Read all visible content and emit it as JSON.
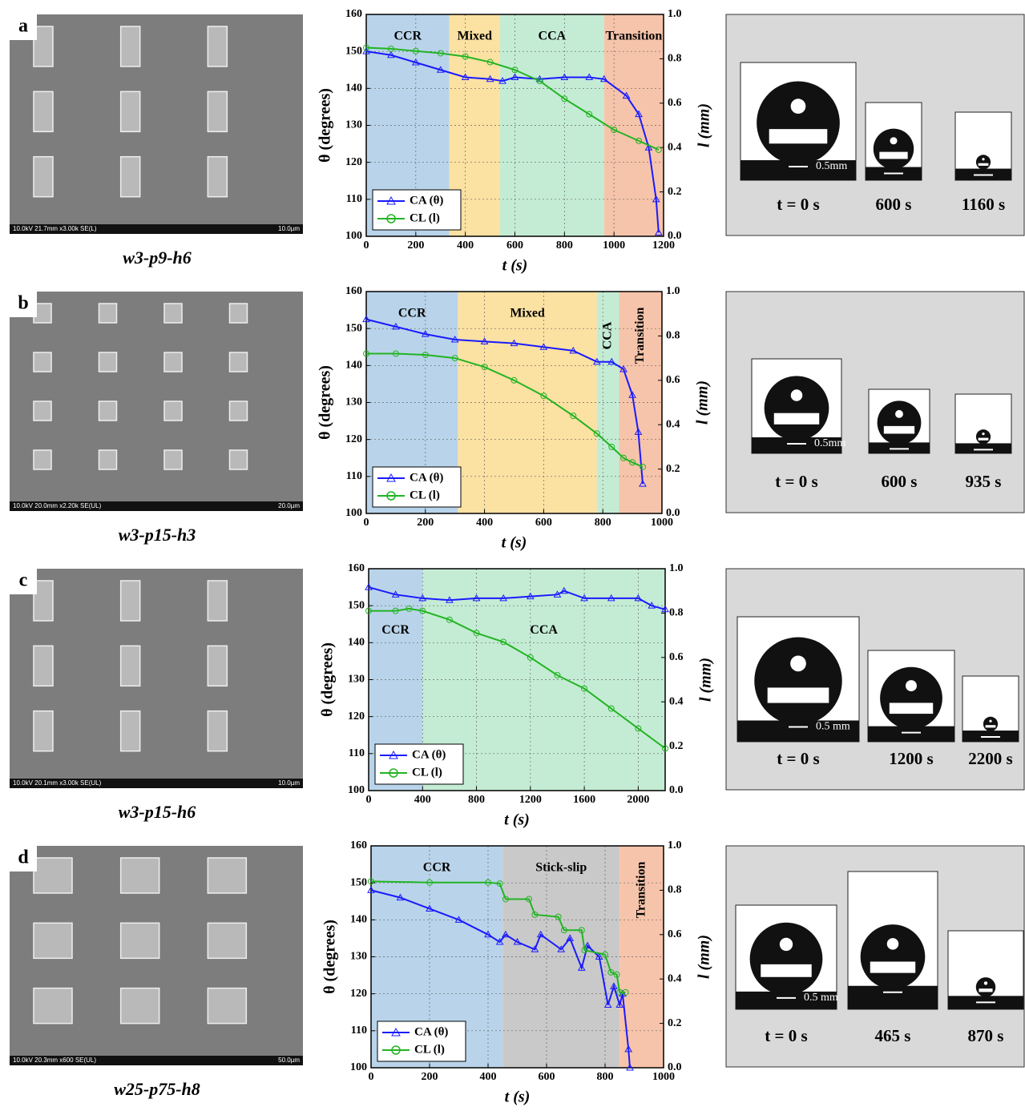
{
  "panels": [
    {
      "label": "a",
      "sem": {
        "info": "10.0kV 21.7mm x3.00k SE(L)",
        "scale": "10.0µm"
      },
      "caption": "w3-p9-h6",
      "droplets": {
        "scale_bar": "0.5mm",
        "times": [
          "t = 0 s",
          "600 s",
          "1160 s"
        ]
      }
    },
    {
      "label": "b",
      "sem": {
        "info": "10.0kV 20.0mm x2.20k SE(UL)",
        "scale": "20.0µm"
      },
      "caption": "w3-p15-h3",
      "droplets": {
        "scale_bar": "0.5mm",
        "times": [
          "t = 0 s",
          "600 s",
          "935 s"
        ]
      }
    },
    {
      "label": "c",
      "sem": {
        "info": "10.0kV 20.1mm x3.00k SE(UL)",
        "scale": "10.0µm"
      },
      "caption": "w3-p15-h6",
      "droplets": {
        "scale_bar": "0.5 mm",
        "times": [
          "t = 0 s",
          "1200 s",
          "2200 s"
        ]
      }
    },
    {
      "label": "d",
      "sem": {
        "info": "10.0kV 20.3mm x600 SE(UL)",
        "scale": "50.0µm"
      },
      "caption": "w25-p75-h8",
      "droplets": {
        "scale_bar": "0.5 mm",
        "times": [
          "t = 0 s",
          "465 s",
          "870 s"
        ]
      }
    }
  ],
  "chart_data": [
    {
      "type": "line",
      "x_label": "t (s)",
      "y_label": "θ (degrees)",
      "y2_label": "l (mm)",
      "legend": "lower left",
      "xlim": [
        0,
        1200
      ],
      "xticks": [
        0,
        200,
        400,
        600,
        800,
        1000,
        1200
      ],
      "ylim": [
        100,
        160
      ],
      "yticks": [
        100,
        110,
        120,
        130,
        140,
        150,
        160
      ],
      "y2lim": [
        0,
        1
      ],
      "y2ticks": [
        {
          "value": 0,
          "label": "0.0"
        },
        0.2,
        0.4,
        0.6,
        0.8,
        {
          "value": 1,
          "label": "1.0"
        }
      ],
      "grid": true,
      "regions": [
        {
          "label": "CCR",
          "start": 0,
          "end": 335,
          "color": "#b9d4ea"
        },
        {
          "label": "Mixed",
          "start": 335,
          "end": 540,
          "color": "#fbe1a2"
        },
        {
          "label": "CCA",
          "start": 540,
          "end": 960,
          "color": "#c4ecd4"
        },
        {
          "label": "Transition",
          "start": 960,
          "end": 1200,
          "color": "#f6c4aa"
        }
      ],
      "series": [
        {
          "name": "CA (θ)",
          "color": "#1a1aff",
          "marker": "triangle",
          "x": [
            0,
            100,
            200,
            300,
            400,
            500,
            550,
            600,
            700,
            800,
            900,
            960,
            1050,
            1100,
            1140,
            1170,
            1180
          ],
          "values": [
            150,
            149,
            147,
            145,
            143,
            142.5,
            142,
            143,
            142.5,
            143,
            143,
            142.5,
            138,
            133,
            124,
            110,
            101
          ]
        },
        {
          "name": "CL (l)",
          "color": "#22b422",
          "marker": "circle",
          "axis": "y2",
          "x": [
            0,
            100,
            200,
            300,
            400,
            500,
            600,
            700,
            800,
            900,
            1000,
            1100,
            1180
          ],
          "values": [
            0.85,
            0.845,
            0.835,
            0.825,
            0.81,
            0.785,
            0.75,
            0.7,
            0.62,
            0.55,
            0.48,
            0.43,
            0.39
          ]
        }
      ]
    },
    {
      "type": "line",
      "x_label": "t (s)",
      "y_label": "θ (degrees)",
      "y2_label": "l (mm)",
      "legend": "lower left",
      "xlim": [
        0,
        1000
      ],
      "xticks": [
        0,
        200,
        400,
        600,
        800,
        1000
      ],
      "ylim": [
        100,
        160
      ],
      "yticks": [
        100,
        110,
        120,
        130,
        140,
        150,
        160
      ],
      "y2lim": [
        0,
        1
      ],
      "y2ticks": [
        {
          "value": 0,
          "label": "0.0"
        },
        0.2,
        0.4,
        0.6,
        0.8,
        {
          "value": 1,
          "label": "1.0"
        }
      ],
      "grid": true,
      "regions": [
        {
          "label": "CCR",
          "start": 0,
          "end": 310,
          "color": "#b9d4ea"
        },
        {
          "label": "Mixed",
          "start": 310,
          "end": 780,
          "color": "#fbe1a2"
        },
        {
          "label": "CCA",
          "start": 780,
          "end": 855,
          "color": "#c4ecd4"
        },
        {
          "label": "Transition",
          "start": 855,
          "end": 1000,
          "color": "#f6c4aa"
        }
      ],
      "series": [
        {
          "name": "CA (θ)",
          "color": "#1a1aff",
          "marker": "triangle",
          "x": [
            0,
            100,
            200,
            300,
            400,
            500,
            600,
            700,
            780,
            830,
            870,
            900,
            920,
            935
          ],
          "values": [
            152.5,
            150.5,
            148.5,
            147,
            146.5,
            146,
            145,
            144,
            141,
            141,
            139,
            132,
            122,
            108
          ]
        },
        {
          "name": "CL (l)",
          "color": "#22b422",
          "marker": "circle",
          "axis": "y2",
          "x": [
            0,
            100,
            200,
            300,
            400,
            500,
            600,
            700,
            780,
            830,
            870,
            900,
            935
          ],
          "values": [
            0.72,
            0.72,
            0.715,
            0.7,
            0.66,
            0.6,
            0.53,
            0.44,
            0.36,
            0.3,
            0.25,
            0.23,
            0.21
          ]
        }
      ]
    },
    {
      "type": "line",
      "x_label": "t (s)",
      "y_label": "θ (degrees)",
      "y2_label": "l (mm)",
      "legend": "lower left",
      "xlim": [
        0,
        2200
      ],
      "xticks": [
        0,
        400,
        800,
        1200,
        1600,
        2000
      ],
      "ylim": [
        100,
        160
      ],
      "yticks": [
        100,
        110,
        120,
        130,
        140,
        150,
        160
      ],
      "y2lim": [
        0,
        1
      ],
      "y2ticks": [
        {
          "value": 0,
          "label": "0.0"
        },
        0.2,
        0.4,
        0.6,
        0.8,
        {
          "value": 1,
          "label": "1.0"
        }
      ],
      "grid": true,
      "regions": [
        {
          "label": "CCR",
          "start": 0,
          "end": 400,
          "color": "#b9d4ea"
        },
        {
          "label": "CCA",
          "start": 400,
          "end": 2200,
          "color": "#c4ecd4"
        }
      ],
      "series": [
        {
          "name": "CA (θ)",
          "color": "#1a1aff",
          "marker": "triangle",
          "x": [
            0,
            200,
            400,
            600,
            800,
            1000,
            1200,
            1400,
            1450,
            1600,
            1800,
            2000,
            2100,
            2200
          ],
          "values": [
            155,
            153,
            152,
            151.5,
            152,
            152,
            152.5,
            153,
            154,
            152,
            152,
            152,
            150,
            149
          ]
        },
        {
          "name": "CL (l)",
          "color": "#22b422",
          "marker": "circle",
          "axis": "y2",
          "x": [
            0,
            200,
            300,
            400,
            600,
            800,
            1000,
            1200,
            1400,
            1600,
            1800,
            2000,
            2200
          ],
          "values": [
            0.81,
            0.81,
            0.82,
            0.81,
            0.77,
            0.71,
            0.67,
            0.6,
            0.52,
            0.46,
            0.37,
            0.28,
            0.19
          ]
        }
      ]
    },
    {
      "type": "line",
      "x_label": "t (s)",
      "y_label": "θ (degrees)",
      "y2_label": "l (mm)",
      "legend": "lower left",
      "xlim": [
        0,
        1000
      ],
      "xticks": [
        0,
        200,
        400,
        600,
        800,
        1000
      ],
      "ylim": [
        100,
        160
      ],
      "yticks": [
        100,
        110,
        120,
        130,
        140,
        150,
        160
      ],
      "y2lim": [
        0,
        1
      ],
      "y2ticks": [
        {
          "value": 0,
          "label": "0.0"
        },
        0.2,
        0.4,
        0.6,
        0.8,
        {
          "value": 1,
          "label": "1.0"
        }
      ],
      "grid": true,
      "regions": [
        {
          "label": "CCR",
          "start": 0,
          "end": 450,
          "color": "#b9d4ea"
        },
        {
          "label": "Stick-slip",
          "start": 450,
          "end": 850,
          "color": "#c9c9c9"
        },
        {
          "label": "Transition",
          "start": 850,
          "end": 1000,
          "color": "#f6c4aa"
        }
      ],
      "series": [
        {
          "name": "CA (θ)",
          "color": "#1a1aff",
          "marker": "triangle",
          "x": [
            0,
            100,
            200,
            300,
            400,
            440,
            460,
            500,
            560,
            580,
            650,
            680,
            720,
            740,
            780,
            810,
            830,
            850,
            860,
            880,
            885
          ],
          "values": [
            148,
            146,
            143,
            140,
            136,
            134,
            136,
            134,
            132,
            136,
            132,
            135,
            127,
            133,
            130,
            117,
            122,
            117,
            120,
            105,
            100
          ]
        },
        {
          "name": "CL (l)",
          "color": "#22b422",
          "marker": "circle",
          "axis": "y2",
          "x": [
            0,
            200,
            400,
            440,
            460,
            540,
            560,
            640,
            660,
            720,
            730,
            800,
            820,
            840,
            850,
            870
          ],
          "values": [
            0.84,
            0.835,
            0.835,
            0.83,
            0.76,
            0.76,
            0.69,
            0.68,
            0.62,
            0.62,
            0.53,
            0.51,
            0.43,
            0.42,
            0.34,
            0.34
          ]
        }
      ]
    }
  ]
}
